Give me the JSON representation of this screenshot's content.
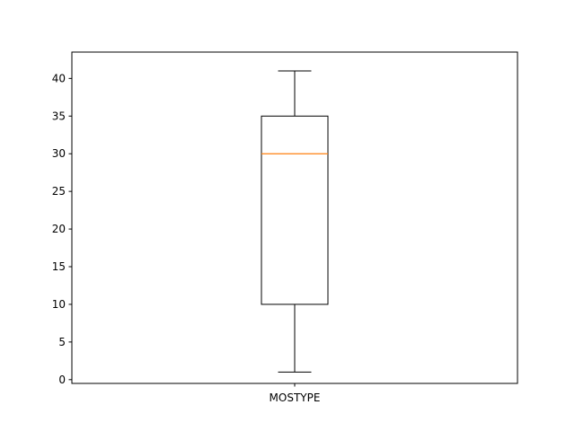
{
  "chart_data": {
    "type": "box",
    "categories": [
      "MOSTYPE"
    ],
    "series": [
      {
        "whisker_low": 1,
        "q1": 10,
        "median": 30,
        "q3": 35,
        "whisker_high": 41
      }
    ],
    "y_ticks": [
      0,
      5,
      10,
      15,
      20,
      25,
      30,
      35,
      40
    ],
    "ylim": [
      -0.5,
      43.5
    ],
    "grid": false,
    "colors": {
      "box": "#000000",
      "median": "#ff7f0e",
      "axes": "#000000",
      "background": "#ffffff"
    }
  }
}
